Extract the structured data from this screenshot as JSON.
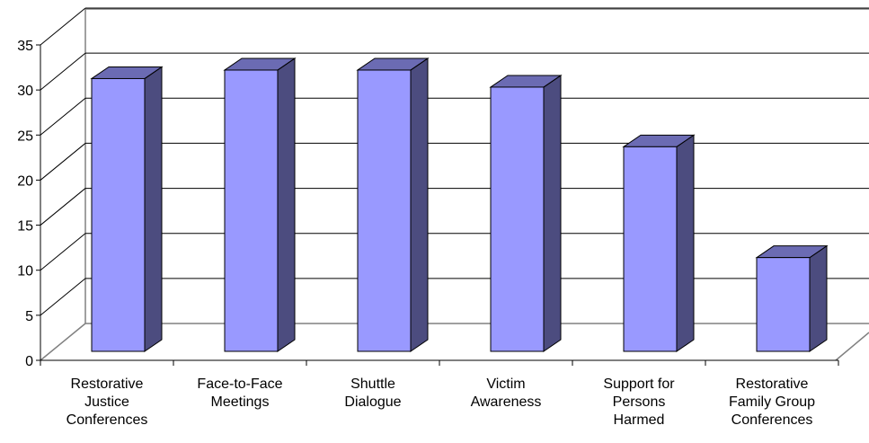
{
  "chart_data": {
    "type": "bar",
    "style": "3d-column",
    "categories": [
      [
        "Restorative",
        "Justice",
        "Conferences"
      ],
      [
        "Face-to-Face",
        "Meetings"
      ],
      [
        "Shuttle",
        "Dialogue"
      ],
      [
        "Victim",
        "Awareness"
      ],
      [
        "Support for",
        "Persons",
        "Harmed"
      ],
      [
        "Restorative",
        "Family Group",
        "Conferences"
      ]
    ],
    "values": [
      32,
      33,
      33,
      31,
      24,
      11
    ],
    "title": "",
    "xlabel": "",
    "ylabel": "",
    "ylim": [
      0,
      35
    ],
    "yticks": [
      0,
      5,
      10,
      15,
      20,
      25,
      30,
      35
    ],
    "grid": true,
    "legend": "none"
  },
  "colors": {
    "bar_front": "#9999ff",
    "bar_side": "#4c4c7f",
    "bar_top": "#6b6bb3",
    "outline": "#000000",
    "grid": "#000000",
    "wall_edge": "#808080"
  }
}
